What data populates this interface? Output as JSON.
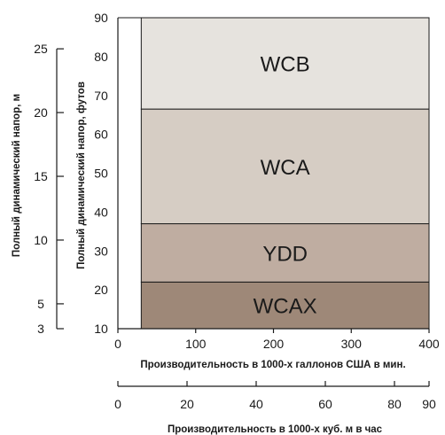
{
  "chart_data": {
    "type": "area",
    "x_gpm": {
      "label": "Производительность в 1000-х галлонов США в мин.",
      "range": [
        0,
        400
      ],
      "ticks": [
        0,
        100,
        200,
        300,
        400
      ]
    },
    "x_m3h": {
      "label": "Производительность в 1000-х куб. м в час",
      "range": [
        0,
        90
      ],
      "ticks": [
        0,
        20,
        40,
        60,
        80,
        90
      ]
    },
    "y_ft": {
      "label": "Полный динамический напор, футов",
      "range": [
        10,
        90
      ],
      "ticks": [
        10,
        20,
        30,
        40,
        50,
        60,
        70,
        80,
        90
      ]
    },
    "y_m": {
      "label": "Полный динамический напор, м",
      "ticks": [
        3,
        5,
        10,
        15,
        20,
        25
      ],
      "tick_ft_positions": [
        10,
        16.4,
        32.8,
        49.2,
        65.6,
        82
      ]
    },
    "zones": [
      {
        "name": "WCAX",
        "x_start": 30,
        "x_end": 400,
        "y_start": 10,
        "y_end": 22,
        "color": "#9e8878"
      },
      {
        "name": "YDD",
        "x_start": 30,
        "x_end": 400,
        "y_start": 22,
        "y_end": 37,
        "color": "#bfada1"
      },
      {
        "name": "WCA",
        "x_start": 30,
        "x_end": 400,
        "y_start": 37,
        "y_end": 66.5,
        "color": "#d6cdc4"
      },
      {
        "name": "WCB",
        "x_start": 30,
        "x_end": 400,
        "y_start": 66.5,
        "y_end": 90,
        "color": "#e6e3de"
      }
    ]
  }
}
